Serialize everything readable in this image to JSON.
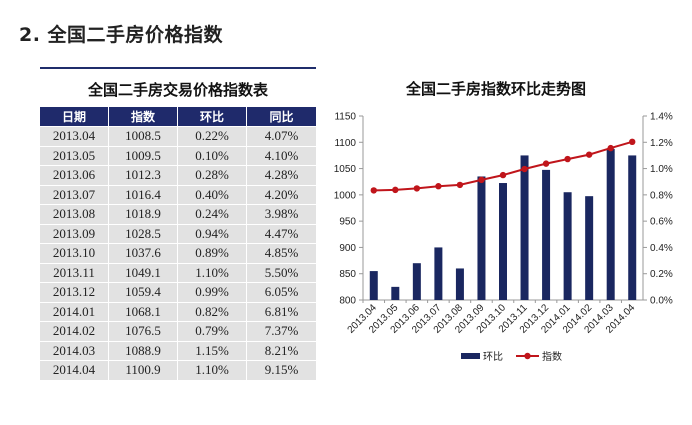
{
  "section": {
    "title": "2. 全国二手房价格指数"
  },
  "table": {
    "title": "全国二手房交易价格指数表",
    "headers": [
      "日期",
      "指数",
      "环比",
      "同比"
    ],
    "rows": [
      [
        "2013.04",
        "1008.5",
        "0.22%",
        "4.07%"
      ],
      [
        "2013.05",
        "1009.5",
        "0.10%",
        "4.10%"
      ],
      [
        "2013.06",
        "1012.3",
        "0.28%",
        "4.28%"
      ],
      [
        "2013.07",
        "1016.4",
        "0.40%",
        "4.20%"
      ],
      [
        "2013.08",
        "1018.9",
        "0.24%",
        "3.98%"
      ],
      [
        "2013.09",
        "1028.5",
        "0.94%",
        "4.47%"
      ],
      [
        "2013.10",
        "1037.6",
        "0.89%",
        "4.85%"
      ],
      [
        "2013.11",
        "1049.1",
        "1.10%",
        "5.50%"
      ],
      [
        "2013.12",
        "1059.4",
        "0.99%",
        "6.05%"
      ],
      [
        "2014.01",
        "1068.1",
        "0.82%",
        "6.81%"
      ],
      [
        "2014.02",
        "1076.5",
        "0.79%",
        "7.37%"
      ],
      [
        "2014.03",
        "1088.9",
        "1.15%",
        "8.21%"
      ],
      [
        "2014.04",
        "1100.9",
        "1.10%",
        "9.15%"
      ]
    ]
  },
  "chart_data": {
    "type": "bar",
    "title": "全国二手房指数环比走势图",
    "categories": [
      "2013.04",
      "2013.05",
      "2013.06",
      "2013.07",
      "2013.08",
      "2013.09",
      "2013.10",
      "2013.11",
      "2013.12",
      "2014.01",
      "2014.02",
      "2014.03",
      "2014.04"
    ],
    "series": [
      {
        "name": "环比",
        "type": "bar",
        "axis": "right",
        "color": "#1a2760",
        "values": [
          0.22,
          0.1,
          0.28,
          0.4,
          0.24,
          0.94,
          0.89,
          1.1,
          0.99,
          0.82,
          0.79,
          1.15,
          1.1
        ]
      },
      {
        "name": "指数",
        "type": "line",
        "axis": "left",
        "color": "#c0151b",
        "values": [
          1008.5,
          1009.5,
          1012.3,
          1016.4,
          1018.9,
          1028.5,
          1037.6,
          1049.1,
          1059.4,
          1068.1,
          1076.5,
          1088.9,
          1100.9
        ]
      }
    ],
    "y_left": {
      "min": 800,
      "max": 1150,
      "ticks": [
        "800",
        "850",
        "900",
        "950",
        "1000",
        "1050",
        "1100",
        "1150"
      ]
    },
    "y_right": {
      "min": 0,
      "max": 1.4,
      "unit": "%",
      "ticks": [
        "0.0%",
        "0.2%",
        "0.4%",
        "0.6%",
        "0.8%",
        "1.0%",
        "1.2%",
        "1.4%"
      ]
    },
    "legend_position": "bottom",
    "grid": false
  }
}
